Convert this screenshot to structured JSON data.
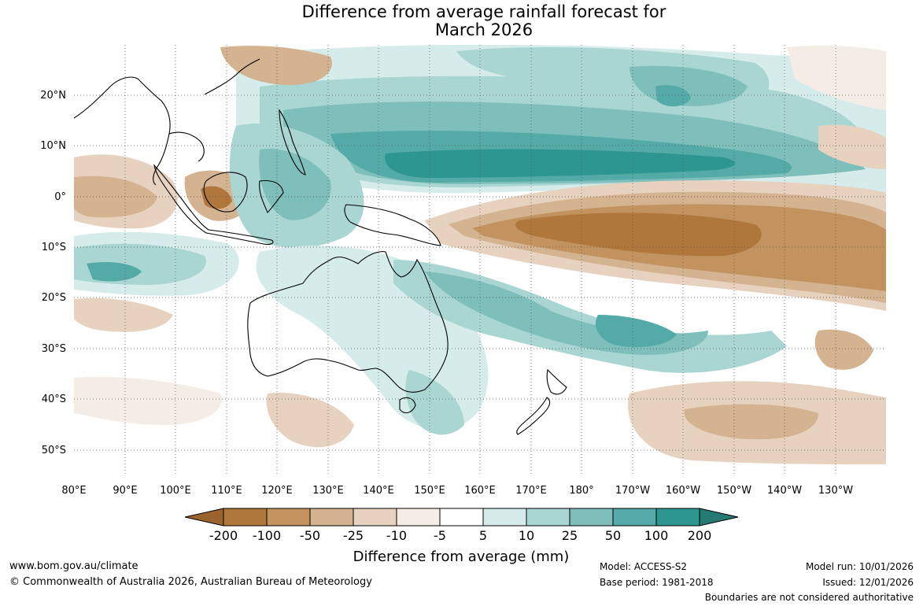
{
  "title": {
    "line1": "Difference from average rainfall forecast for",
    "line2": "March 2026"
  },
  "map": {
    "region": "Australia and western Pacific",
    "lon_labels": [
      "80°E",
      "90°E",
      "100°E",
      "110°E",
      "120°E",
      "130°E",
      "140°E",
      "150°E",
      "160°E",
      "170°E",
      "180°",
      "170°W",
      "160°W",
      "150°W",
      "140°W",
      "130°W"
    ],
    "lat_labels": [
      "20°N",
      "10°N",
      "0°",
      "10°S",
      "20°S",
      "30°S",
      "40°S",
      "50°S"
    ]
  },
  "colorbar": {
    "title": "Difference from average (mm)",
    "ticks": [
      "-200",
      "-100",
      "-50",
      "-25",
      "-10",
      "-5",
      "5",
      "10",
      "25",
      "50",
      "100",
      "200"
    ],
    "colors": {
      "extend_low": "#9b632c",
      "b1": "#b0773c",
      "b2": "#c2935f",
      "b3": "#d4b391",
      "b4": "#e6d2bf",
      "b5": "#f3ede5",
      "b6": "#ffffff",
      "b7": "#d6eceb",
      "b8": "#a9d6d3",
      "b9": "#7ebfbb",
      "b10": "#54aaa6",
      "b11": "#2e9690",
      "extend_high": "#257a74"
    }
  },
  "footer": {
    "website": "www.bom.gov.au/climate",
    "copyright": "© Commonwealth of Australia 2026, Australian Bureau of Meteorology",
    "model": "Model: ACCESS-S2",
    "base_period": "Base period: 1981-2018",
    "model_run": "Model run: 10/01/2026",
    "issued": "Issued: 12/01/2026",
    "disclaimer": "Boundaries are not considered authoritative"
  }
}
